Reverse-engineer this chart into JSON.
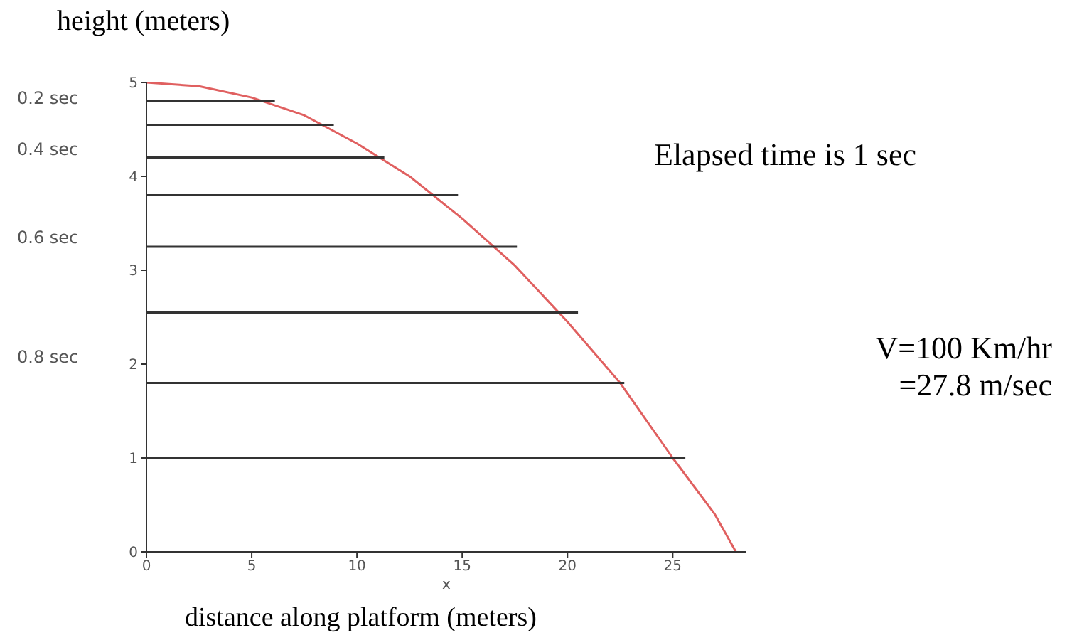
{
  "chart_data": {
    "type": "line",
    "ylabel": "height (meters)",
    "xlabel": "x",
    "annotations": [
      "0.2 sec",
      "0.4 sec",
      "0.6 sec",
      "0.8 sec",
      "Elapsed time is 1 sec",
      "V=100 Km/hr\n=27.8 m/sec",
      "distance along platform (meters)"
    ],
    "series": [
      {
        "color": "#e06060",
        "x": [
          0,
          2.5,
          5,
          7.5,
          10,
          12.5,
          15,
          17.5,
          20,
          22.5,
          25,
          27,
          28
        ],
        "values": [
          5,
          4.96,
          4.84,
          4.65,
          4.35,
          4.0,
          3.55,
          3.05,
          2.45,
          1.8,
          1.0,
          0.4,
          0
        ]
      },
      {
        "color": "#333333",
        "x": [
          0,
          6.1
        ],
        "values": [
          4.8,
          4.8
        ]
      },
      {
        "color": "#333333",
        "x": [
          0,
          8.9
        ],
        "values": [
          4.55,
          4.55
        ]
      },
      {
        "color": "#333333",
        "x": [
          0,
          11.3
        ],
        "values": [
          4.2,
          4.2
        ]
      },
      {
        "color": "#333333",
        "x": [
          0,
          14.8
        ],
        "values": [
          3.8,
          3.8
        ]
      },
      {
        "color": "#333333",
        "x": [
          0,
          17.6
        ],
        "values": [
          3.25,
          3.25
        ]
      },
      {
        "color": "#333333",
        "x": [
          0,
          20.5
        ],
        "values": [
          2.55,
          2.55
        ]
      },
      {
        "color": "#333333",
        "x": [
          0,
          22.7
        ],
        "values": [
          1.8,
          1.8
        ]
      },
      {
        "color": "#333333",
        "x": [
          0,
          25.6
        ],
        "values": [
          1.0,
          1.0
        ]
      }
    ],
    "xlim": [
      0,
      28.5
    ],
    "xticks": [
      0,
      5,
      10,
      15,
      20,
      25
    ],
    "ylim": [
      0,
      5
    ],
    "yticks": [
      0,
      1,
      2,
      3,
      4,
      5
    ],
    "grid": false,
    "marker": "none",
    "line_style": "solid"
  }
}
